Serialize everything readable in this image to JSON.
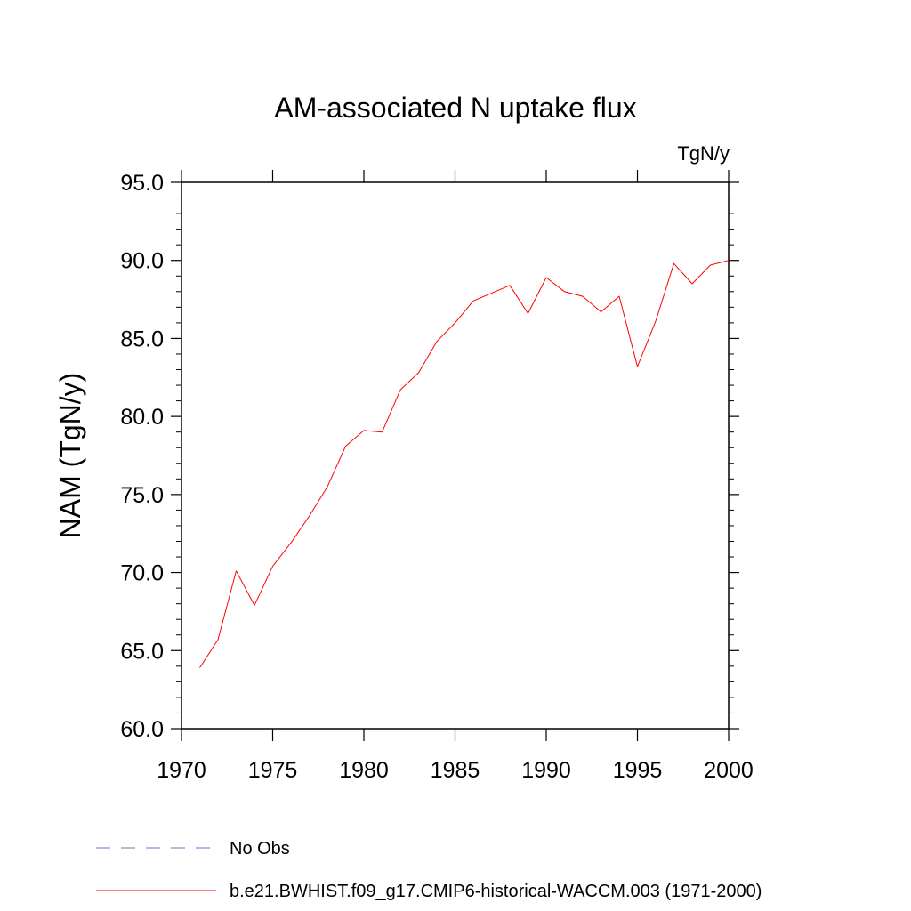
{
  "chart_data": {
    "type": "line",
    "title": "AM-associated N uptake flux",
    "units_label": "TgN/y",
    "xlabel": "",
    "ylabel": "NAM  (TgN/y)",
    "xlim": [
      1970,
      2000
    ],
    "ylim": [
      60,
      95
    ],
    "xticks": [
      1970,
      1975,
      1980,
      1985,
      1990,
      1995,
      2000
    ],
    "xtick_labels": [
      "1970",
      "1975",
      "1980",
      "1985",
      "1990",
      "1995",
      "2000"
    ],
    "yticks": [
      60,
      65,
      70,
      75,
      80,
      85,
      90,
      95
    ],
    "ytick_labels": [
      "60.0",
      "65.0",
      "70.0",
      "75.0",
      "80.0",
      "85.0",
      "90.0",
      "95.0"
    ],
    "grid": false,
    "series": [
      {
        "name": "b.e21.BWHIST.f09_g17.CMIP6-historical-WACCM.003 (1971-2000)",
        "color": "#ff0000",
        "style": "solid",
        "x": [
          1971,
          1972,
          1973,
          1974,
          1975,
          1976,
          1977,
          1978,
          1979,
          1980,
          1981,
          1982,
          1983,
          1984,
          1985,
          1986,
          1987,
          1988,
          1989,
          1990,
          1991,
          1992,
          1993,
          1994,
          1995,
          1996,
          1997,
          1998,
          1999,
          2000
        ],
        "values": [
          63.9,
          65.7,
          70.1,
          67.9,
          70.4,
          71.9,
          73.6,
          75.5,
          78.1,
          79.1,
          79.0,
          81.7,
          82.8,
          84.8,
          86.0,
          87.4,
          87.9,
          88.4,
          86.6,
          88.9,
          88.0,
          87.7,
          86.7,
          87.7,
          83.2,
          86.1,
          89.8,
          88.5,
          89.7,
          90.0
        ]
      }
    ],
    "legend": [
      {
        "label": "No Obs",
        "color": "#7b68c8",
        "style": "dashed"
      },
      {
        "label": "b.e21.BWHIST.f09_g17.CMIP6-historical-WACCM.003 (1971-2000)",
        "color": "#ff0000",
        "style": "solid"
      }
    ],
    "legend_position": "bottom-left"
  }
}
